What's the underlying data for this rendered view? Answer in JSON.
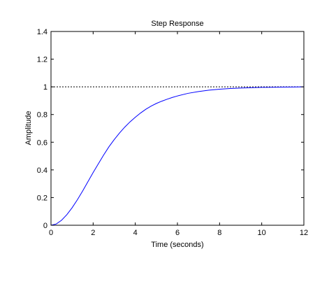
{
  "chart_data": {
    "type": "line",
    "title": "Step Response",
    "xlabel": "Time (seconds)",
    "ylabel": "Amplitude",
    "xlim": [
      0,
      12
    ],
    "ylim": [
      0,
      1.4
    ],
    "x_ticks": [
      "0",
      "2",
      "4",
      "6",
      "8",
      "10",
      "12"
    ],
    "y_ticks": [
      "0",
      "0.2",
      "0.4",
      "0.6",
      "0.8",
      "1",
      "1.2",
      "1.4"
    ],
    "grid": false,
    "reference_line": {
      "y": 1,
      "style": "dotted",
      "color": "#000000"
    },
    "series": [
      {
        "color": "#0000ff",
        "x": [
          0,
          0.25,
          0.5,
          0.75,
          1,
          1.25,
          1.5,
          1.75,
          2,
          2.25,
          2.5,
          2.75,
          3,
          3.25,
          3.5,
          3.75,
          4,
          4.25,
          4.5,
          4.75,
          5,
          5.25,
          5.5,
          5.75,
          6,
          6.5,
          7,
          7.5,
          8,
          8.5,
          9,
          9.5,
          10,
          10.5,
          11,
          11.5,
          12
        ],
        "y": [
          0,
          0.009,
          0.036,
          0.076,
          0.126,
          0.184,
          0.247,
          0.314,
          0.381,
          0.445,
          0.508,
          0.567,
          0.619,
          0.666,
          0.709,
          0.747,
          0.78,
          0.811,
          0.838,
          0.861,
          0.88,
          0.896,
          0.91,
          0.923,
          0.934,
          0.953,
          0.966,
          0.976,
          0.983,
          0.988,
          0.991,
          0.994,
          0.996,
          0.997,
          0.998,
          0.999,
          1.0
        ]
      }
    ]
  }
}
